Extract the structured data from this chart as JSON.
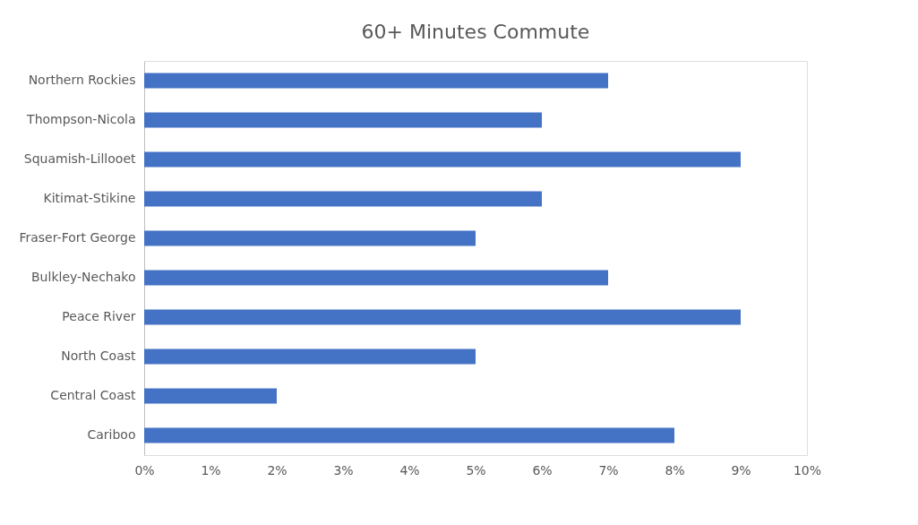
{
  "chart_data": {
    "type": "bar",
    "orientation": "horizontal",
    "title": "60+ Minutes Commute",
    "categories": [
      "Northern Rockies",
      "Thompson-Nicola",
      "Squamish-Lillooet",
      "Kitimat-Stikine",
      "Fraser-Fort George",
      "Bulkley-Nechako",
      "Peace River",
      "North Coast",
      "Central Coast",
      "Cariboo"
    ],
    "values": [
      7,
      6,
      9,
      6,
      5,
      7,
      9,
      5,
      2,
      8
    ],
    "color": "#4472c4",
    "xlim": [
      0,
      10
    ],
    "xticks": [
      {
        "value": 0,
        "label": "0%"
      },
      {
        "value": 1,
        "label": "1%"
      },
      {
        "value": 2,
        "label": "2%"
      },
      {
        "value": 3,
        "label": "3%"
      },
      {
        "value": 4,
        "label": "4%"
      },
      {
        "value": 5,
        "label": "5%"
      },
      {
        "value": 6,
        "label": "6%"
      },
      {
        "value": 7,
        "label": "7%"
      },
      {
        "value": 8,
        "label": "8%"
      },
      {
        "value": 9,
        "label": "9%"
      },
      {
        "value": 10,
        "label": "10%"
      }
    ],
    "grid": false
  }
}
